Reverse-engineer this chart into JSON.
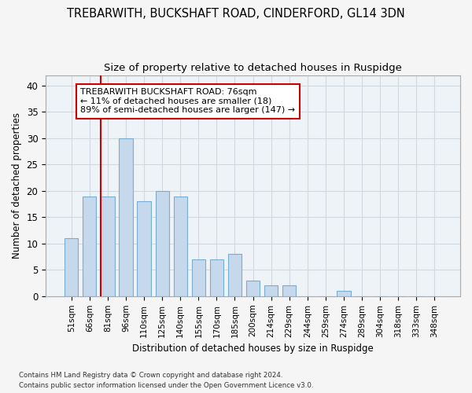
{
  "title": "TREBARWITH, BUCKSHAFT ROAD, CINDERFORD, GL14 3DN",
  "subtitle": "Size of property relative to detached houses in Ruspidge",
  "xlabel": "Distribution of detached houses by size in Ruspidge",
  "ylabel": "Number of detached properties",
  "footer_line1": "Contains HM Land Registry data © Crown copyright and database right 2024.",
  "footer_line2": "Contains public sector information licensed under the Open Government Licence v3.0.",
  "categories": [
    "51sqm",
    "66sqm",
    "81sqm",
    "96sqm",
    "110sqm",
    "125sqm",
    "140sqm",
    "155sqm",
    "170sqm",
    "185sqm",
    "200sqm",
    "214sqm",
    "229sqm",
    "244sqm",
    "259sqm",
    "274sqm",
    "289sqm",
    "304sqm",
    "318sqm",
    "333sqm",
    "348sqm"
  ],
  "values": [
    11,
    19,
    19,
    30,
    18,
    20,
    19,
    7,
    7,
    8,
    3,
    2,
    2,
    0,
    0,
    1,
    0,
    0,
    0,
    0,
    0
  ],
  "bar_color": "#c5d8ec",
  "bar_edge_color": "#7aaed0",
  "vline_color": "#cc0000",
  "vline_x_index": 2,
  "annotation_box_text": "TREBARWITH BUCKSHAFT ROAD: 76sqm\n← 11% of detached houses are smaller (18)\n89% of semi-detached houses are larger (147) →",
  "ylim": [
    0,
    42
  ],
  "yticks": [
    0,
    5,
    10,
    15,
    20,
    25,
    30,
    35,
    40
  ],
  "background_color": "#f5f5f5",
  "plot_background_color": "#eef3f8",
  "grid_color": "#d0d8e0",
  "title_fontsize": 10.5,
  "subtitle_fontsize": 9.5,
  "bar_width": 0.75
}
